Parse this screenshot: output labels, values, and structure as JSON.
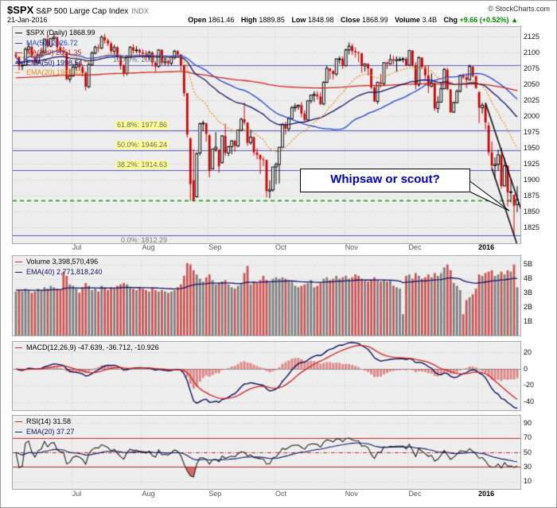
{
  "header": {
    "symbol": "$SPX",
    "name": "S&P 500 Large Cap Index",
    "exchange": "INDX",
    "copyright": "© StockCharts.com",
    "date": "21-Jan-2016",
    "quote": {
      "open_label": "Open",
      "open": "1861.46",
      "high_label": "High",
      "high": "1889.85",
      "low_label": "Low",
      "low": "1848.98",
      "close_label": "Close",
      "close": "1868.99",
      "volume_label": "Volume",
      "volume": "3.4B",
      "chg_label": "Chg",
      "chg": "+9.66 (+0.52%)",
      "chg_arrow": "▲",
      "chg_color": "#008800"
    }
  },
  "legends": {
    "price": [
      {
        "label": "$SPX (Daily) 1868.99",
        "color": "#000000",
        "swatch": "#000000"
      },
      {
        "label": "MA(50) 2026.72",
        "color": "#2244cc",
        "swatch": "#2244cc"
      },
      {
        "label": "MA(200) 2051.35",
        "color": "#cc2222",
        "swatch": "#cc2222"
      },
      {
        "label": "EMA(50) 1998.54",
        "color": "#111166",
        "swatch": "#111166"
      },
      {
        "label": "EMA(20) 1949.42",
        "color": "#ee8811",
        "swatch": "#ee8811",
        "dotted": true
      }
    ],
    "volume": [
      {
        "label": "Volume 3,398,570,496",
        "color": "#000000",
        "swatch": "#cc2222"
      },
      {
        "label": "EMA(40) 2,771,818,240",
        "color": "#111166",
        "swatch": "#111166"
      }
    ],
    "macd": [
      {
        "label": "MACD(12,26,9) -47.639, -36.712, -10.926",
        "color": "#000000",
        "swatch": "#cc2222"
      }
    ],
    "rsi": [
      {
        "label": "RSI(14) 31.58",
        "color": "#000000",
        "swatch": "#cc2222"
      },
      {
        "label": "EMA(20) 37.27",
        "color": "#111166",
        "swatch": "#111166"
      }
    ]
  },
  "chart_data": {
    "type": "candlestick",
    "symbol": "$SPX",
    "period": "Daily, Jun 2015 - 21 Jan 2016",
    "annotation": {
      "text": "Whipsaw or scout?"
    },
    "indicator_params": {
      "ma": [
        50,
        200
      ],
      "ema_price": [
        50,
        20
      ],
      "macd": [
        12,
        26,
        9
      ],
      "rsi": 14,
      "rsi_ema": 20,
      "volume_ema": 40
    },
    "axes": {
      "price_ticks": [
        2125,
        2100,
        2075,
        2050,
        2025,
        2000,
        1975,
        1950,
        1925,
        1900,
        1875,
        1850,
        1825
      ],
      "price_lim": [
        1800,
        2140
      ],
      "volume_ticks": [
        5,
        4,
        3,
        2,
        1
      ],
      "volume_lim": [
        0,
        5.6
      ],
      "macd_ticks": [
        20,
        0,
        -20,
        -40
      ],
      "macd_lim": [
        -50,
        33
      ],
      "rsi_ticks": [
        90,
        70,
        50,
        30,
        10
      ],
      "rsi_lim": [
        0,
        100
      ]
    },
    "months": [
      {
        "label": "Jul",
        "i": 18
      },
      {
        "label": "Aug",
        "i": 40
      },
      {
        "label": "Sep",
        "i": 61
      },
      {
        "label": "Oct",
        "i": 82
      },
      {
        "label": "Nov",
        "i": 104
      },
      {
        "label": "Dec",
        "i": 124
      },
      {
        "label": "2016",
        "i": 146,
        "bold": true
      }
    ],
    "fib": [
      {
        "label": "100.0%: 2080.19",
        "value": 2080.19,
        "highlight": false,
        "below": false
      },
      {
        "label": "61.8%: 1977.86",
        "value": 1977.86,
        "highlight": true,
        "below": false
      },
      {
        "label": "50.0%: 1946.24",
        "value": 1946.24,
        "highlight": true,
        "below": false
      },
      {
        "label": "38.2%: 1914.63",
        "value": 1914.63,
        "highlight": true,
        "below": false
      },
      {
        "label": "0.0%: 1812.29",
        "value": 1812.29,
        "highlight": false,
        "below": true
      }
    ],
    "support": {
      "value": 1867,
      "color": "#009900"
    },
    "trendlines": [
      [
        148,
        2021,
        160,
        1841
      ],
      [
        150,
        1918,
        158.5,
        1790
      ]
    ],
    "candles": [
      [
        2097,
        2101,
        2091,
        2093
      ],
      [
        2093,
        2094,
        2072,
        2079
      ],
      [
        2079,
        2085,
        2072,
        2080
      ],
      [
        2080,
        2108,
        2079,
        2105
      ],
      [
        2105,
        2115,
        2099,
        2109
      ],
      [
        2109,
        2111,
        2091,
        2094
      ],
      [
        2094,
        2097,
        2080,
        2084
      ],
      [
        2084,
        2098,
        2082,
        2096
      ],
      [
        2096,
        2107,
        2092,
        2100
      ],
      [
        2100,
        2122,
        2098,
        2121
      ],
      [
        2121,
        2126,
        2107,
        2110
      ],
      [
        2110,
        2123,
        2108,
        2122
      ],
      [
        2122,
        2130,
        2119,
        2124
      ],
      [
        2124,
        2125,
        2102,
        2108
      ],
      [
        2108,
        2116,
        2098,
        2102
      ],
      [
        2102,
        2109,
        2095,
        2101
      ],
      [
        2101,
        2101,
        2056,
        2058
      ],
      [
        2058,
        2074,
        2053,
        2063
      ],
      [
        2063,
        2082,
        2062,
        2077
      ],
      [
        2077,
        2086,
        2072,
        2081
      ],
      [
        2081,
        2086,
        2071,
        2077
      ],
      [
        2077,
        2081,
        2062,
        2068
      ],
      [
        2068,
        2070,
        2040,
        2046
      ],
      [
        2046,
        2084,
        2044,
        2081
      ],
      [
        2081,
        2102,
        2079,
        2099
      ],
      [
        2099,
        2111,
        2097,
        2108
      ],
      [
        2108,
        2113,
        2101,
        2107
      ],
      [
        2107,
        2127,
        2105,
        2124
      ],
      [
        2124,
        2129,
        2114,
        2119
      ],
      [
        2119,
        2122,
        2110,
        2114
      ],
      [
        2114,
        2117,
        2098,
        2102
      ],
      [
        2102,
        2112,
        2097,
        2108
      ],
      [
        2108,
        2110,
        2088,
        2093
      ],
      [
        2093,
        2095,
        2073,
        2079
      ],
      [
        2079,
        2082,
        2062,
        2067
      ],
      [
        2067,
        2096,
        2064,
        2093
      ],
      [
        2093,
        2110,
        2091,
        2108
      ],
      [
        2108,
        2113,
        2098,
        2103
      ],
      [
        2103,
        2110,
        2099,
        2104
      ],
      [
        2104,
        2106,
        2093,
        2100
      ],
      [
        2100,
        2105,
        2091,
        2098
      ],
      [
        2098,
        2103,
        2087,
        2093
      ],
      [
        2093,
        2103,
        2088,
        2100
      ],
      [
        2100,
        2102,
        2078,
        2084
      ],
      [
        2084,
        2086,
        2070,
        2078
      ],
      [
        2078,
        2105,
        2076,
        2104
      ],
      [
        2104,
        2105,
        2080,
        2084
      ],
      [
        2084,
        2092,
        2079,
        2086
      ],
      [
        2086,
        2089,
        2078,
        2083
      ],
      [
        2083,
        2094,
        2080,
        2092
      ],
      [
        2092,
        2104,
        2089,
        2102
      ],
      [
        2102,
        2104,
        2092,
        2097
      ],
      [
        2097,
        2097,
        2071,
        2080
      ],
      [
        2080,
        2081,
        2031,
        2036
      ],
      [
        2036,
        2036,
        1966,
        1971
      ],
      [
        1965,
        1966,
        1867,
        1893
      ],
      [
        1899,
        1948,
        1867,
        1868
      ],
      [
        1873,
        1943,
        1872,
        1941
      ],
      [
        1942,
        1990,
        1938,
        1988
      ],
      [
        1988,
        1993,
        1976,
        1989
      ],
      [
        1989,
        1989,
        1960,
        1972
      ],
      [
        1970,
        1971,
        1904,
        1914
      ],
      [
        1917,
        1949,
        1916,
        1948
      ],
      [
        1948,
        1975,
        1944,
        1951
      ],
      [
        1947,
        1948,
        1911,
        1921
      ],
      [
        1927,
        1970,
        1925,
        1969
      ],
      [
        1969,
        1988,
        1937,
        1942
      ],
      [
        1942,
        1953,
        1937,
        1952
      ],
      [
        1952,
        1962,
        1940,
        1961
      ],
      [
        1961,
        1963,
        1944,
        1953
      ],
      [
        1953,
        1979,
        1951,
        1978
      ],
      [
        1978,
        1997,
        1976,
        1995
      ],
      [
        1995,
        2021,
        1986,
        1990
      ],
      [
        1990,
        1990,
        1953,
        1958
      ],
      [
        1958,
        1979,
        1955,
        1967
      ],
      [
        1967,
        1968,
        1938,
        1943
      ],
      [
        1943,
        1949,
        1932,
        1939
      ],
      [
        1939,
        1940,
        1909,
        1932
      ],
      [
        1932,
        1936,
        1921,
        1931
      ],
      [
        1931,
        1931,
        1872,
        1882
      ],
      [
        1882,
        1899,
        1871,
        1884
      ],
      [
        1884,
        1920,
        1881,
        1920
      ],
      [
        1920,
        1927,
        1893,
        1924
      ],
      [
        1924,
        1951,
        1894,
        1951
      ],
      [
        1951,
        1989,
        1950,
        1987
      ],
      [
        1987,
        1991,
        1971,
        1980
      ],
      [
        1980,
        1999,
        1976,
        1996
      ],
      [
        1996,
        2016,
        1995,
        2013
      ],
      [
        2013,
        2020,
        2007,
        2015
      ],
      [
        2015,
        2018,
        2010,
        2017
      ],
      [
        2017,
        2022,
        1998,
        2004
      ],
      [
        2004,
        2009,
        1990,
        1994
      ],
      [
        1994,
        2024,
        1992,
        2024
      ],
      [
        2024,
        2033,
        2020,
        2033
      ],
      [
        2033,
        2039,
        2022,
        2034
      ],
      [
        2034,
        2039,
        2026,
        2031
      ],
      [
        2031,
        2037,
        2017,
        2019
      ],
      [
        2019,
        2055,
        2017,
        2053
      ],
      [
        2053,
        2079,
        2052,
        2075
      ],
      [
        2075,
        2075,
        2058,
        2071
      ],
      [
        2071,
        2072,
        2058,
        2066
      ],
      [
        2066,
        2090,
        2063,
        2090
      ],
      [
        2090,
        2094,
        2082,
        2090
      ],
      [
        2090,
        2094,
        2074,
        2079
      ],
      [
        2079,
        2106,
        2078,
        2104
      ],
      [
        2104,
        2116,
        2097,
        2110
      ],
      [
        2110,
        2114,
        2096,
        2102
      ],
      [
        2102,
        2108,
        2092,
        2100
      ],
      [
        2100,
        2102,
        2085,
        2099
      ],
      [
        2099,
        2099,
        2068,
        2079
      ],
      [
        2079,
        2083,
        2070,
        2082
      ],
      [
        2082,
        2083,
        2064,
        2075
      ],
      [
        2075,
        2075,
        2042,
        2045
      ],
      [
        2045,
        2046,
        2022,
        2023
      ],
      [
        2023,
        2054,
        2019,
        2053
      ],
      [
        2053,
        2066,
        2045,
        2051
      ],
      [
        2051,
        2085,
        2048,
        2084
      ],
      [
        2084,
        2086,
        2074,
        2082
      ],
      [
        2082,
        2097,
        2081,
        2089
      ],
      [
        2089,
        2095,
        2081,
        2087
      ],
      [
        2087,
        2094,
        2070,
        2089
      ],
      [
        2089,
        2093,
        2086,
        2089
      ],
      [
        2089,
        2093,
        2084,
        2090
      ],
      [
        2090,
        2093,
        2078,
        2080
      ],
      [
        2080,
        2104,
        2080,
        2103
      ],
      [
        2103,
        2104,
        2077,
        2080
      ],
      [
        2080,
        2085,
        2042,
        2049
      ],
      [
        2049,
        2094,
        2046,
        2092
      ],
      [
        2092,
        2092,
        2074,
        2077
      ],
      [
        2077,
        2080,
        2058,
        2064
      ],
      [
        2064,
        2080,
        2036,
        2047
      ],
      [
        2047,
        2067,
        2045,
        2052
      ],
      [
        2052,
        2053,
        2008,
        2012
      ],
      [
        2012,
        2031,
        2005,
        2022
      ],
      [
        2022,
        2053,
        2021,
        2043
      ],
      [
        2043,
        2076,
        2042,
        2073
      ],
      [
        2073,
        2076,
        2041,
        2042
      ],
      [
        2042,
        2042,
        2005,
        2006
      ],
      [
        2006,
        2023,
        2005,
        2021
      ],
      [
        2021,
        2042,
        2020,
        2039
      ],
      [
        2039,
        2065,
        2037,
        2064
      ],
      [
        2064,
        2067,
        2058,
        2061
      ],
      [
        2061,
        2067,
        2044,
        2057
      ],
      [
        2057,
        2081,
        2056,
        2078
      ],
      [
        2078,
        2078,
        2061,
        2063
      ],
      [
        2063,
        2063,
        2043,
        2044
      ],
      [
        2038,
        2038,
        1989,
        2013
      ],
      [
        2013,
        2021,
        2004,
        2017
      ],
      [
        2017,
        2021,
        1979,
        1990
      ],
      [
        1985,
        1990,
        1938,
        1943
      ],
      [
        1943,
        1960,
        1918,
        1922
      ],
      [
        1922,
        1935,
        1901,
        1924
      ],
      [
        1924,
        1947,
        1914,
        1939
      ],
      [
        1939,
        1950,
        1886,
        1890
      ],
      [
        1890,
        1934,
        1890,
        1922
      ],
      [
        1922,
        1922,
        1858,
        1880
      ],
      [
        1880,
        1901,
        1864,
        1881
      ],
      [
        1876,
        1877,
        1812,
        1859
      ],
      [
        1861,
        1890,
        1849,
        1869
      ]
    ],
    "volumes_billions": [
      3.1,
      3.2,
      3.1,
      3.3,
      3.2,
      3.0,
      3.1,
      3.3,
      3.2,
      3.4,
      3.3,
      3.5,
      3.4,
      3.3,
      3.2,
      4.5,
      4.2,
      3.6,
      3.5,
      3.3,
      3.0,
      3.4,
      3.7,
      3.5,
      3.2,
      3.3,
      3.1,
      3.5,
      3.3,
      3.2,
      3.4,
      3.3,
      3.5,
      3.6,
      3.7,
      3.6,
      3.4,
      3.3,
      3.2,
      3.4,
      3.3,
      3.2,
      3.1,
      3.4,
      3.2,
      3.1,
      3.2,
      3.1,
      3.0,
      3.1,
      3.2,
      3.4,
      3.6,
      4.2,
      5.1,
      5.0,
      4.6,
      4.3,
      4.0,
      3.8,
      4.1,
      4.3,
      3.9,
      3.6,
      3.7,
      3.8,
      3.9,
      3.6,
      3.4,
      3.3,
      3.5,
      3.7,
      4.4,
      4.9,
      3.6,
      3.8,
      3.7,
      3.9,
      4.2,
      3.9,
      3.7,
      4.0,
      4.1,
      4.0,
      4.1,
      4.0,
      3.9,
      3.8,
      3.5,
      3.4,
      3.5,
      3.6,
      3.7,
      3.9,
      3.4,
      3.5,
      3.7,
      4.0,
      4.1,
      3.9,
      4.0,
      4.2,
      4.0,
      4.1,
      4.2,
      4.0,
      4.1,
      4.3,
      4.2,
      4.0,
      3.9,
      3.8,
      3.9,
      4.1,
      3.9,
      3.8,
      3.9,
      3.8,
      3.9,
      3.5,
      3.4,
      3.3,
      1.5,
      4.2,
      4.3,
      4.0,
      4.4,
      4.2,
      4.0,
      4.1,
      4.3,
      4.1,
      4.4,
      4.2,
      4.4,
      4.8,
      5.0,
      4.6,
      3.7,
      3.5,
      3.2,
      1.5,
      2.5,
      2.7,
      2.9,
      3.3,
      4.3,
      4.2,
      4.4,
      4.5,
      4.6,
      4.2,
      4.3,
      4.5,
      4.3,
      4.6,
      4.5,
      5.0,
      3.4
    ]
  }
}
